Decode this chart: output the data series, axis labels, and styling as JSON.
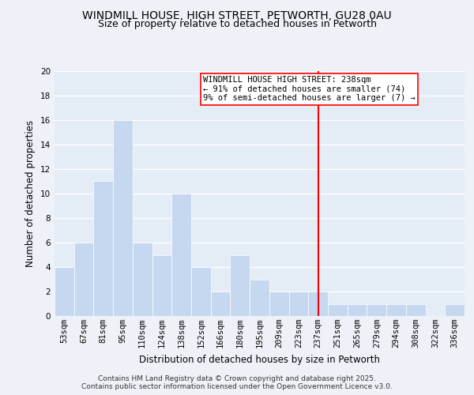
{
  "title1": "WINDMILL HOUSE, HIGH STREET, PETWORTH, GU28 0AU",
  "title2": "Size of property relative to detached houses in Petworth",
  "xlabel": "Distribution of detached houses by size in Petworth",
  "ylabel": "Number of detached properties",
  "categories": [
    "53sqm",
    "67sqm",
    "81sqm",
    "95sqm",
    "110sqm",
    "124sqm",
    "138sqm",
    "152sqm",
    "166sqm",
    "180sqm",
    "195sqm",
    "209sqm",
    "223sqm",
    "237sqm",
    "251sqm",
    "265sqm",
    "279sqm",
    "294sqm",
    "308sqm",
    "322sqm",
    "336sqm"
  ],
  "values": [
    4,
    6,
    11,
    16,
    6,
    5,
    10,
    4,
    2,
    5,
    3,
    2,
    2,
    2,
    1,
    1,
    1,
    1,
    1,
    0,
    1
  ],
  "bar_color_normal": "#c5d8f0",
  "bar_color_highlight": "#e8a0a0",
  "highlight_index": 13,
  "vline_index": 13,
  "ylim": [
    0,
    20
  ],
  "yticks": [
    0,
    2,
    4,
    6,
    8,
    10,
    12,
    14,
    16,
    18,
    20
  ],
  "annotation_lines": [
    "WINDMILL HOUSE HIGH STREET: 238sqm",
    "← 91% of detached houses are smaller (74)",
    "9% of semi-detached houses are larger (7) →"
  ],
  "footer_line1": "Contains HM Land Registry data © Crown copyright and database right 2025.",
  "footer_line2": "Contains public sector information licensed under the Open Government Licence v3.0.",
  "background_color": "#eef2f8",
  "plot_background": "#e4ecf6",
  "grid_color": "#ffffff",
  "title_fontsize": 10,
  "subtitle_fontsize": 9,
  "axis_label_fontsize": 8.5,
  "tick_fontsize": 7.5,
  "footer_fontsize": 6.5,
  "annotation_fontsize": 7.5
}
